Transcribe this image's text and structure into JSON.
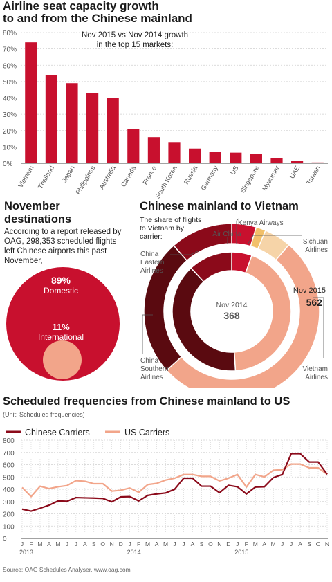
{
  "title": "Airline seat capacity growth to and from the Chinese mainland",
  "title_line1": "Airline seat capacity growth",
  "title_line2": "to and from the Chinese mainland",
  "colors": {
    "red": "#c8102e",
    "dark_red": "#8b0a1a",
    "darkest": "#5a0a10",
    "salmon": "#f2a58a",
    "gold": "#f2c06a",
    "cream": "#f6d4a8",
    "grid": "#cfcfcf"
  },
  "chart_data": [
    {
      "type": "bar",
      "annotation_line1": "Nov 2015 vs Nov 2014 growth",
      "annotation_line2": "in the top 15 markets:",
      "categories": [
        "Vietnam",
        "Thailand",
        "Japan",
        "Philippines",
        "Australia",
        "Canada",
        "France",
        "South Korea",
        "Russia",
        "Germany",
        "US",
        "Singapore",
        "Myanmar",
        "UAE",
        "Taiwan"
      ],
      "values": [
        74,
        54,
        49,
        43,
        40,
        21,
        16,
        13,
        9,
        7,
        6.5,
        5.5,
        3,
        1.5,
        0.5
      ],
      "yticks": [
        "0%",
        "10%",
        "20%",
        "30%",
        "40%",
        "50%",
        "60%",
        "70%",
        "80%"
      ],
      "ylim": [
        0,
        80
      ]
    },
    {
      "type": "pie",
      "heading_line1": "November",
      "heading_line2": "destinations",
      "text_lines": [
        "According to a report released by",
        "OAG, 298,353 scheduled flights",
        "left Chinese airports this past",
        "November,"
      ],
      "slices": [
        {
          "label": "Domestic",
          "pct_label": "89%",
          "value": 89
        },
        {
          "label": "International",
          "pct_label": "11%",
          "value": 11
        }
      ]
    },
    {
      "type": "donut",
      "heading": "Chinese mainland to Vietnam",
      "subtitle_lines": [
        "The share of flights",
        "to Vietnam by",
        "carrier:"
      ],
      "outer_ring": {
        "label": "Nov 2015",
        "total": "562"
      },
      "inner_ring": {
        "label": "Nov 2014",
        "total": "368"
      },
      "labels": {
        "air_china": "Air China",
        "kenya": "Kenya Airways",
        "sichuan": [
          "Sichuan",
          "Airlines"
        ],
        "china_eastern": [
          "China",
          "Eastern",
          "Airlines"
        ],
        "china_southern": [
          "China",
          "Southern",
          "Airlines"
        ],
        "vietnam": [
          "Vietnam",
          "Airlines"
        ]
      },
      "outer_shares": [
        {
          "carrier": "Air China",
          "value": 4.5
        },
        {
          "carrier": "Kenya Airways",
          "value": 1.8
        },
        {
          "carrier": "Sichuan Airlines",
          "value": 5
        },
        {
          "carrier": "Vietnam Airlines",
          "value": 52
        },
        {
          "carrier": "China Southern Airlines",
          "value": 25.2
        },
        {
          "carrier": "China Eastern Airlines",
          "value": 11.5
        }
      ],
      "inner_shares": [
        {
          "carrier": "Air China",
          "value": 5.5
        },
        {
          "carrier": "Vietnam Airlines",
          "value": 43.5
        },
        {
          "carrier": "China Southern Airlines",
          "value": 39
        },
        {
          "carrier": "China Eastern Airlines",
          "value": 12
        }
      ]
    },
    {
      "type": "line",
      "heading": "Scheduled frequencies from Chinese mainland to US",
      "unit_note": "(Unit: Scheduled frequencies)",
      "ylim": [
        0,
        800
      ],
      "yticks": [
        "0",
        "100",
        "200",
        "300",
        "400",
        "500",
        "600",
        "700",
        "800"
      ],
      "month_labels": [
        "J",
        "F",
        "M",
        "A",
        "M",
        "J",
        "J",
        "A",
        "S",
        "O",
        "N",
        "D",
        "J",
        "F",
        "M",
        "A",
        "M",
        "J",
        "J",
        "A",
        "S",
        "O",
        "N",
        "D",
        "J",
        "F",
        "M",
        "A",
        "M",
        "J",
        "J",
        "A",
        "S",
        "O",
        "N"
      ],
      "year_labels": [
        "2013",
        "2014",
        "2015"
      ],
      "series": [
        {
          "name": "Chinese Carriers",
          "values": [
            238,
            222,
            245,
            270,
            305,
            302,
            332,
            330,
            328,
            325,
            298,
            338,
            340,
            305,
            350,
            362,
            370,
            400,
            490,
            490,
            425,
            425,
            372,
            432,
            420,
            362,
            418,
            420,
            495,
            520,
            690,
            690,
            622,
            622,
            522
          ]
        },
        {
          "name": "US Carriers",
          "values": [
            415,
            340,
            425,
            405,
            420,
            430,
            470,
            465,
            445,
            445,
            385,
            392,
            410,
            375,
            438,
            448,
            475,
            490,
            520,
            520,
            505,
            505,
            468,
            490,
            520,
            418,
            520,
            500,
            555,
            560,
            605,
            605,
            575,
            575,
            522
          ]
        }
      ]
    }
  ],
  "source": "Source: OAG Schedules Analyser, www.oag.com"
}
